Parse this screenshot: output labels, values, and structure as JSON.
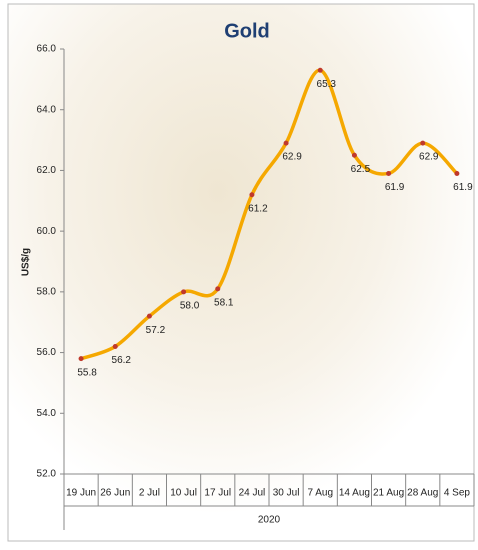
{
  "chart_data": {
    "type": "line",
    "title": "Gold",
    "y_label": "US$/g",
    "x_group_label": "2020",
    "categories": [
      "19 Jun",
      "26 Jun",
      "2 Jul",
      "10 Jul",
      "17 Jul",
      "24 Jul",
      "30 Jul",
      "7 Aug",
      "14 Aug",
      "21 Aug",
      "28 Aug",
      "4 Sep"
    ],
    "series": [
      {
        "name": "Gold",
        "color": "#f5a800",
        "marker_color": "#c0392b",
        "values": [
          55.8,
          56.2,
          57.2,
          58.0,
          58.1,
          61.2,
          62.9,
          65.3,
          62.5,
          61.9,
          62.9,
          61.9
        ],
        "value_labels": [
          "55.8",
          "56.2",
          "57.2",
          "58.0",
          "58.1",
          "61.2",
          "62.9",
          "65.3",
          "62.5",
          "61.9",
          "62.9",
          "61.9"
        ]
      }
    ],
    "ylim": [
      52,
      66
    ],
    "yticks": [
      {
        "value": 52,
        "label": "52.0"
      },
      {
        "value": 54,
        "label": "54.0"
      },
      {
        "value": 56,
        "label": "56.0"
      },
      {
        "value": 58,
        "label": "58.0"
      },
      {
        "value": 60,
        "label": "60.0"
      },
      {
        "value": 62,
        "label": "62.0"
      },
      {
        "value": 64,
        "label": "64.0"
      },
      {
        "value": 66,
        "label": "66.0"
      }
    ],
    "smooth": true
  }
}
